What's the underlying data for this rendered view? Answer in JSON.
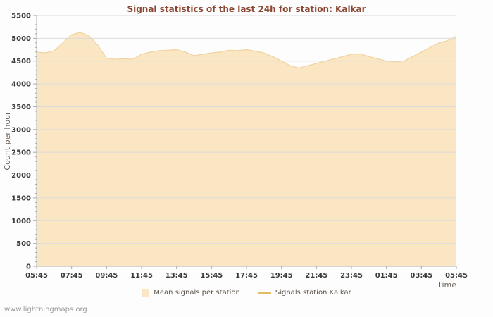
{
  "watermark": "www.lightningmaps.org",
  "chart_data": {
    "type": "area",
    "title": "Signal statistics of the last 24h for station: Kalkar",
    "xlabel": "Time",
    "ylabel": "Count per hour",
    "ylim": [
      0,
      5500
    ],
    "y_tick_step": 500,
    "y_minor_step": 100,
    "y_tick_labels": [
      "0",
      "500",
      "1000",
      "1500",
      "2000",
      "2500",
      "3000",
      "3500",
      "4000",
      "4500",
      "5000",
      "5500"
    ],
    "x_tick_labels": [
      "05:45",
      "07:45",
      "09:45",
      "11:45",
      "13:45",
      "15:45",
      "17:45",
      "19:45",
      "21:45",
      "23:45",
      "01:45",
      "03:45",
      "05:45"
    ],
    "grid": "horizontal",
    "legend_position": "bottom",
    "sample_interval_hours": 0.5,
    "x_range_hours": [
      0,
      24
    ],
    "series": [
      {
        "name": "Mean signals per station",
        "kind": "area",
        "fill_color": "#FAE6C3",
        "edge_color": "#EFD3A0",
        "values": [
          4700,
          4680,
          4730,
          4900,
          5080,
          5130,
          5050,
          4850,
          4560,
          4540,
          4550,
          4540,
          4650,
          4700,
          4730,
          4740,
          4750,
          4700,
          4620,
          4650,
          4680,
          4700,
          4740,
          4730,
          4750,
          4720,
          4680,
          4600,
          4500,
          4400,
          4350,
          4400,
          4450,
          4500,
          4550,
          4600,
          4650,
          4660,
          4600,
          4550,
          4500,
          4480,
          4500,
          4600,
          4700,
          4800,
          4900,
          4950,
          5050
        ]
      },
      {
        "name": "Signals station Kalkar",
        "kind": "line",
        "line_color": "#E2BE62",
        "values": []
      }
    ],
    "colors": {
      "title": "#8B4632",
      "tick_text": "#3a3a3a",
      "axis_label_text": "#6b6257",
      "grid": "#DBDBDB",
      "axis_line": "#AAAAAA",
      "background": "#FDFDFD",
      "watermark": "#999999",
      "legend_text": "#5a5248"
    }
  }
}
